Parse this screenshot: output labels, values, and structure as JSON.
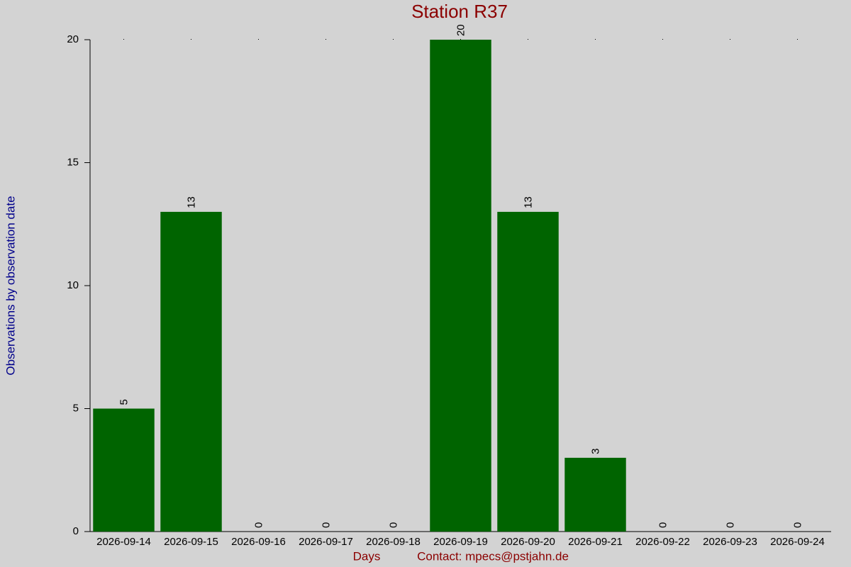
{
  "chart_data": {
    "type": "bar",
    "title": "Station R37",
    "x_label": "Days",
    "y_label": "Observations by observation date",
    "footer": "Contact: mpecs@pstjahn.de",
    "categories": [
      "2026-09-14",
      "2026-09-15",
      "2026-09-16",
      "2026-09-17",
      "2026-09-18",
      "2026-09-19",
      "2026-09-20",
      "2026-09-21",
      "2026-09-22",
      "2026-09-23",
      "2026-09-24"
    ],
    "values": [
      5,
      13,
      0,
      0,
      0,
      20,
      13,
      3,
      0,
      0,
      0
    ],
    "color": "#006400",
    "ylim": [
      0,
      20
    ],
    "yticks": [
      0,
      5,
      10,
      15,
      20
    ]
  }
}
